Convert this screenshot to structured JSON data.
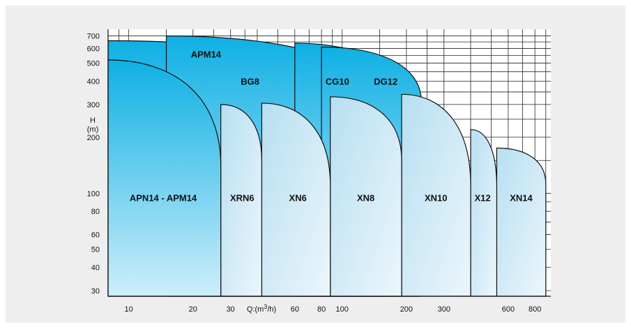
{
  "chart_data": {
    "type": "area",
    "title": "",
    "xlabel": "Q:(m3/h)",
    "ylabel": "H (m)",
    "x_scale": "log",
    "y_scale": "log",
    "xlim": [
      8,
      950
    ],
    "ylim": [
      28,
      760
    ],
    "x_ticks": [
      10,
      20,
      30,
      60,
      80,
      100,
      200,
      300,
      600,
      800
    ],
    "y_ticks": [
      30,
      40,
      50,
      60,
      80,
      100,
      200,
      300,
      400,
      500,
      600,
      700
    ],
    "grid": true,
    "y_label_parts": [
      "H",
      "(m)"
    ],
    "x_label_parts": {
      "prefix": "Q:(m",
      "sup": "3",
      "suffix": "/h)"
    },
    "colors": {
      "dark_top": "#0fb0e4",
      "dark_bottom": "#cdeefa",
      "light_top": "#b7dff1",
      "light_bottom": "#ecf6fc",
      "outline": "#111111",
      "background": "#eeeeee"
    },
    "regions": [
      {
        "name": "APM14",
        "q_min": 8,
        "q_max": 150,
        "h_max": 660,
        "h_at_q_max": 260
      },
      {
        "name": "BG8",
        "q_min": 15,
        "q_max": 185,
        "h_max": 700,
        "h_at_q_max": 230
      },
      {
        "name": "CG10",
        "q_min": 60,
        "q_max": 230,
        "h_max": 640,
        "h_at_q_max": 230
      },
      {
        "name": "DG12",
        "q_min": 80,
        "q_max": 235,
        "h_max": 610,
        "h_at_q_max": 310
      },
      {
        "name": "APN14 - APM14",
        "q_min": 8,
        "q_max": 27,
        "h_max": 520,
        "h_at_q_max": 140
      },
      {
        "name": "XRN6",
        "q_min": 27,
        "q_max": 42,
        "h_max": 300,
        "h_at_q_max": 150
      },
      {
        "name": "XN6",
        "q_min": 42,
        "q_max": 88,
        "h_max": 305,
        "h_at_q_max": 110
      },
      {
        "name": "XN8",
        "q_min": 88,
        "q_max": 190,
        "h_max": 330,
        "h_at_q_max": 150
      },
      {
        "name": "XN10",
        "q_min": 190,
        "q_max": 400,
        "h_max": 340,
        "h_at_q_max": 110
      },
      {
        "name": "X12",
        "q_min": 400,
        "q_max": 530,
        "h_max": 220,
        "h_at_q_max": 108
      },
      {
        "name": "XN14",
        "q_min": 530,
        "q_max": 900,
        "h_max": 175,
        "h_at_q_max": 112
      }
    ]
  }
}
